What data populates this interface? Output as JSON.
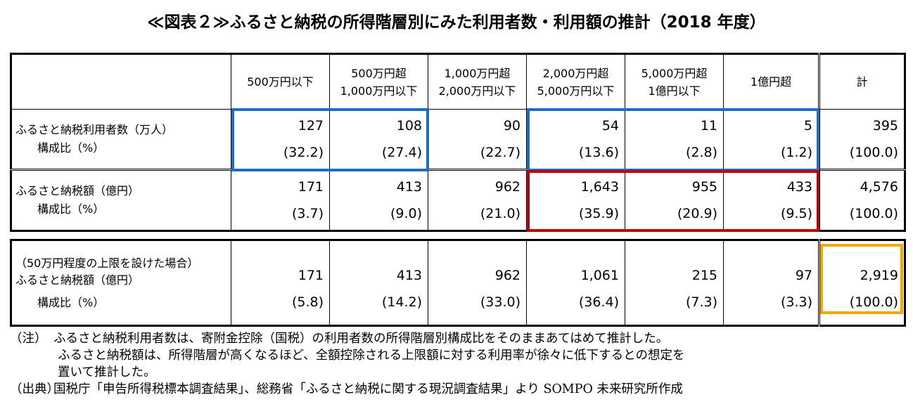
{
  "title": "≪図表２≫ふるさと納税の所得階層別にみた利用者数・利用額の推計（2018 年度）",
  "columns": [
    [
      "500万円以下"
    ],
    [
      "500万円超",
      "1,000万円以下"
    ],
    [
      "1,000万円超",
      "2,000万円以下"
    ],
    [
      "2,000万円超",
      "5,000万円以下"
    ],
    [
      "5,000万円超",
      "1億円以下"
    ],
    [
      "1億円超"
    ],
    [
      "計"
    ]
  ],
  "rows": {
    "users": {
      "label": "ふるさと納税利用者数（万人）",
      "sub_label": "構成比（%）",
      "values": [
        "127",
        "108",
        "90",
        "54",
        "11",
        "5",
        "395"
      ],
      "ratios": [
        "(32.2)",
        "(27.4)",
        "(22.7)",
        "(13.6)",
        "(2.8)",
        "(1.2)",
        "(100.0)"
      ]
    },
    "amount": {
      "label": "ふるさと納税額（億円）",
      "sub_label": "構成比（%）",
      "values": [
        "171",
        "413",
        "962",
        "1,643",
        "955",
        "433",
        "4,576"
      ],
      "ratios": [
        "(3.7)",
        "(9.0)",
        "(21.0)",
        "(35.9)",
        "(20.9)",
        "(9.5)",
        "(100.0)"
      ]
    },
    "capped": {
      "note_label": "（50万円程度の上限を設けた場合）",
      "label": "ふるさと納税額（億円）",
      "sub_label": "構成比（%）",
      "values": [
        "171",
        "413",
        "962",
        "1,061",
        "215",
        "97",
        "2,919"
      ],
      "ratios": [
        "(5.8)",
        "(14.2)",
        "(33.0)",
        "(36.4)",
        "(7.3)",
        "(3.3)",
        "(100.0)"
      ]
    }
  },
  "highlight_colors": {
    "blue": "#1a6fc4",
    "red": "#c00000",
    "orange": "#f0a800"
  },
  "notes": {
    "note_tag": "（注）",
    "note_line1": "ふるさと納税利用者数は、寄附金控除（国税）の利用者数の所得階層別構成比をそのままあてはめて推計した。",
    "note_line2": "ふるさと納税額は、所得階層が高くなるほど、全額控除される上限額に対する利用率が徐々に低下するとの想定を",
    "note_line3": "置いて推計した。",
    "source_tag": "（出典）",
    "source_text": "国税庁「申告所得税標本調査結果」、総務省「ふるさと納税に関する現況調査結果」より SOMPO 未来研究所作成"
  }
}
